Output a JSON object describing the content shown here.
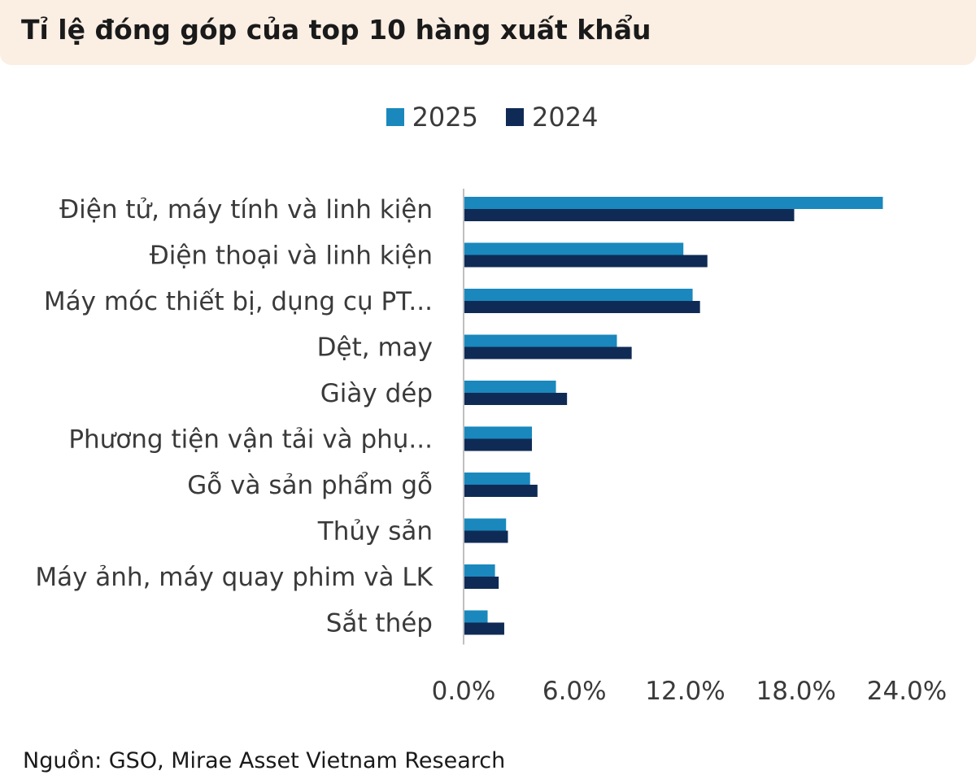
{
  "header": {
    "title": "Tỉ lệ đóng góp của top 10 hàng xuất khẩu"
  },
  "source": "Nguồn: GSO, Mirae Asset Vietnam Research",
  "colors": {
    "s2025": "#1a88bd",
    "s2024": "#0f2b55",
    "axis": "#bfbfbf"
  },
  "chart_data": {
    "type": "bar",
    "orientation": "horizontal",
    "categories": [
      "Điện tử, máy tính và linh kiện",
      "Điện thoại và linh kiện",
      "Máy móc thiết bị, dụng cụ PT...",
      "Dệt, may",
      "Giày dép",
      "Phương tiện vận tải và phụ...",
      "Gỗ và sản phẩm gỗ",
      "Thủy sản",
      "Máy ảnh, máy quay phim và LK",
      "Sắt thép"
    ],
    "series": [
      {
        "name": "2025",
        "values": [
          22.7,
          11.9,
          12.4,
          8.3,
          5.0,
          3.7,
          3.6,
          2.3,
          1.7,
          1.3
        ]
      },
      {
        "name": "2024",
        "values": [
          17.9,
          13.2,
          12.8,
          9.1,
          5.6,
          3.7,
          4.0,
          2.4,
          1.9,
          2.2
        ]
      }
    ],
    "xlim": [
      0,
      24
    ],
    "xticks": [
      "0.0%",
      "6.0%",
      "12.0%",
      "18.0%",
      "24.0%"
    ],
    "legend": "top-center",
    "grid": false
  }
}
